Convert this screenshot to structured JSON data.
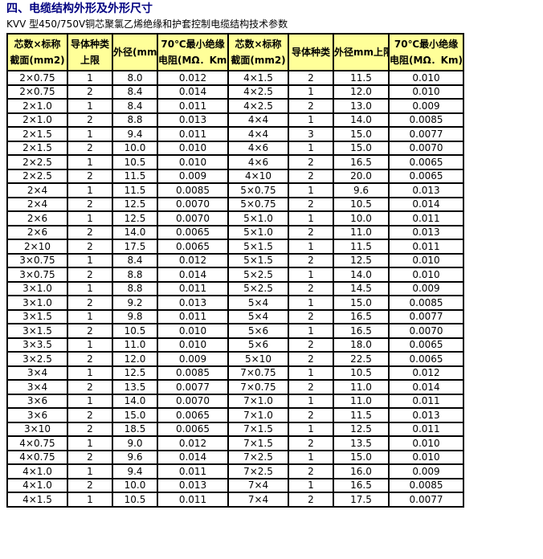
{
  "page": {
    "title": "四、电缆结构外形及外形尺寸",
    "subtitle": "KVV 型450/750V铜芯聚氯乙烯绝缘和护套控制电缆结构技术参数"
  },
  "colors": {
    "title_color": "#000080",
    "header_bg": "#FFFF99",
    "border_color": "#000000"
  },
  "chart_data": {
    "type": "table",
    "title": "KVV 型450/750V铜芯聚氯乙烯绝缘和护套控制电缆结构技术参数",
    "headers": [
      [
        "芯数×标称",
        "截面(mm2)"
      ],
      [
        "导体种类",
        "上限"
      ],
      [
        "外径(mm)"
      ],
      [
        "70℃最小绝缘",
        "电阻(MΩ．Km)"
      ],
      [
        "芯数×标称",
        "截面(mm2)"
      ],
      [
        "导体种类"
      ],
      [
        "外径mm上限"
      ],
      [
        "70℃最小绝缘",
        "电阻(MΩ．Km)"
      ]
    ],
    "rows": [
      [
        "2×0.75",
        "1",
        "8.0",
        "0.012",
        "4×1.5",
        "2",
        "11.5",
        "0.010"
      ],
      [
        "2×0.75",
        "2",
        "8.4",
        "0.014",
        "4×2.5",
        "1",
        "12.0",
        "0.010"
      ],
      [
        "2×1.0",
        "1",
        "8.4",
        "0.011",
        "4×2.5",
        "2",
        "13.0",
        "0.009"
      ],
      [
        "2×1.0",
        "2",
        "8.8",
        "0.013",
        "4×4",
        "1",
        "14.0",
        "0.0085"
      ],
      [
        "2×1.5",
        "1",
        "9.4",
        "0.011",
        "4×4",
        "3",
        "15.0",
        "0.0077"
      ],
      [
        "2×1.5",
        "2",
        "10.0",
        "0.010",
        "4×6",
        "1",
        "15.0",
        "0.0070"
      ],
      [
        "2×2.5",
        "1",
        "10.5",
        "0.010",
        "4×6",
        "2",
        "16.5",
        "0.0065"
      ],
      [
        "2×2.5",
        "2",
        "11.5",
        "0.009",
        "4×10",
        "2",
        "20.0",
        "0.0065"
      ],
      [
        "2×4",
        "1",
        "11.5",
        "0.0085",
        "5×0.75",
        "1",
        "9.6",
        "0.013"
      ],
      [
        "2×4",
        "2",
        "12.5",
        "0.0070",
        "5×0.75",
        "2",
        "10.5",
        "0.014"
      ],
      [
        "2×6",
        "1",
        "12.5",
        "0.0070",
        "5×1.0",
        "1",
        "10.0",
        "0.011"
      ],
      [
        "2×6",
        "2",
        "14.0",
        "0.0065",
        "5×1.0",
        "2",
        "11.0",
        "0.013"
      ],
      [
        "2×10",
        "2",
        "17.5",
        "0.0065",
        "5×1.5",
        "1",
        "11.5",
        "0.011"
      ],
      [
        "3×0.75",
        "1",
        "8.4",
        "0.012",
        "5×1.5",
        "2",
        "12.5",
        "0.010"
      ],
      [
        "3×0.75",
        "2",
        "8.8",
        "0.014",
        "5×2.5",
        "1",
        "14.0",
        "0.010"
      ],
      [
        "3×1.0",
        "1",
        "8.8",
        "0.011",
        "5×2.5",
        "2",
        "14.5",
        "0.009"
      ],
      [
        "3×1.0",
        "2",
        "9.2",
        "0.013",
        "5×4",
        "1",
        "15.0",
        "0.0085"
      ],
      [
        "3×1.5",
        "1",
        "9.8",
        "0.011",
        "5×4",
        "2",
        "16.5",
        "0.0077"
      ],
      [
        "3×1.5",
        "2",
        "10.5",
        "0.010",
        "5×6",
        "1",
        "16.5",
        "0.0070"
      ],
      [
        "3×3.5",
        "1",
        "11.0",
        "0.010",
        "5×6",
        "2",
        "18.0",
        "0.0065"
      ],
      [
        "3×2.5",
        "2",
        "12.0",
        "0.009",
        "5×10",
        "2",
        "22.5",
        "0.0065"
      ],
      [
        "3×4",
        "1",
        "12.5",
        "0.0085",
        "7×0.75",
        "1",
        "10.5",
        "0.012"
      ],
      [
        "3×4",
        "2",
        "13.5",
        "0.0077",
        "7×0.75",
        "2",
        "11.0",
        "0.014"
      ],
      [
        "3×6",
        "1",
        "14.0",
        "0.0070",
        "7×1.0",
        "1",
        "11.0",
        "0.011"
      ],
      [
        "3×6",
        "2",
        "15.0",
        "0.0065",
        "7×1.0",
        "2",
        "11.5",
        "0.013"
      ],
      [
        "3×10",
        "2",
        "18.5",
        "0.0065",
        "7×1.5",
        "1",
        "12.5",
        "0.011"
      ],
      [
        "4×0.75",
        "1",
        "9.0",
        "0.012",
        "7×1.5",
        "2",
        "13.5",
        "0.010"
      ],
      [
        "4×0.75",
        "2",
        "9.6",
        "0.014",
        "7×2.5",
        "1",
        "15.0",
        "0.010"
      ],
      [
        "4×1.0",
        "1",
        "9.4",
        "0.011",
        "7×2.5",
        "2",
        "16.0",
        "0.009"
      ],
      [
        "4×1.0",
        "2",
        "10.0",
        "0.013",
        "7×4",
        "1",
        "16.5",
        "0.0085"
      ],
      [
        "4×1.5",
        "1",
        "10.5",
        "0.011",
        "7×4",
        "2",
        "17.5",
        "0.0077"
      ]
    ]
  }
}
